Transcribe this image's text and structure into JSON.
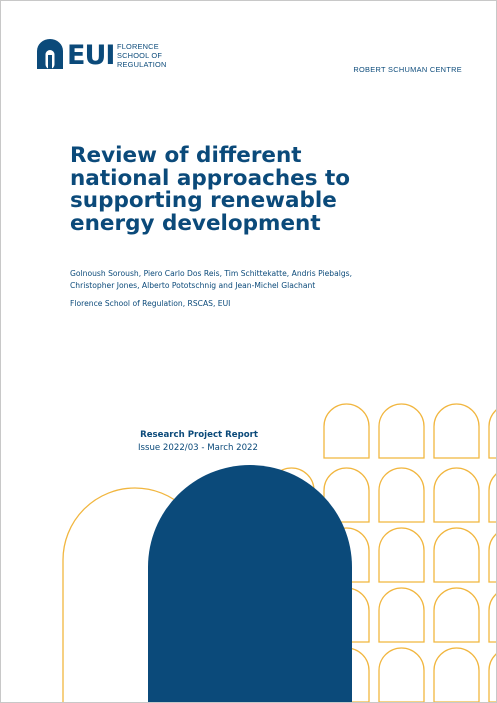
{
  "header": {
    "logo_text": "EUI",
    "logo_sub_lines": [
      "FLORENCE",
      "SCHOOL OF",
      "REGULATION"
    ],
    "centre_label": "ROBERT SCHUMAN CENTRE"
  },
  "cover": {
    "title_lines": [
      "Review of different",
      "national approaches to",
      "supporting renewable",
      "energy development"
    ],
    "author_lines": [
      "Golnoush Soroush, Piero Carlo Dos Reis, Tim Schittekatte, Andris Piebalgs,",
      "Christopher Jones, Alberto Pototschnig and Jean-Michel Glachant"
    ],
    "affiliation": "Florence School of Regulation, RSCAS, EUI",
    "report_type": "Research Project Report",
    "issue": "Issue 2022/03 - March 2022"
  },
  "colors": {
    "navy": "#0b4a7a",
    "gold": "#f1b63f"
  },
  "decor": {
    "icons": [
      "building-logo-icon",
      "arch-pattern"
    ]
  }
}
